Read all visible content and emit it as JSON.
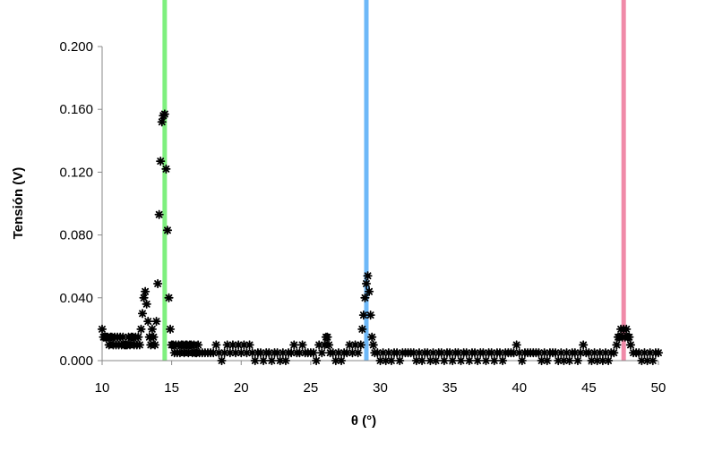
{
  "chart_data": {
    "type": "scatter",
    "title": "",
    "xlabel": "θ (°)",
    "ylabel": "Tensión (V)",
    "xlim": [
      10,
      50
    ],
    "ylim": [
      0,
      0.2
    ],
    "xticks": [
      "10",
      "15",
      "20",
      "25",
      "30",
      "35",
      "40",
      "45",
      "50"
    ],
    "yticks": [
      "0.000",
      "0.040",
      "0.080",
      "0.120",
      "0.160",
      "0.200"
    ],
    "grid": false,
    "legend": "none",
    "marker": "asterisk",
    "marker_color": "#000000",
    "reference_lines": [
      {
        "x": 14.5,
        "color": "#7ff07f"
      },
      {
        "x": 29.0,
        "color": "#6db8f8"
      },
      {
        "x": 47.5,
        "color": "#f08aa8"
      }
    ],
    "series": [
      {
        "points": [
          [
            10.0,
            0.02
          ],
          [
            10.1,
            0.015
          ],
          [
            10.2,
            0.015
          ],
          [
            10.3,
            0.015
          ],
          [
            10.4,
            0.015
          ],
          [
            10.5,
            0.01
          ],
          [
            10.6,
            0.015
          ],
          [
            10.7,
            0.015
          ],
          [
            10.8,
            0.01
          ],
          [
            10.9,
            0.015
          ],
          [
            11.0,
            0.01
          ],
          [
            11.1,
            0.015
          ],
          [
            11.2,
            0.01
          ],
          [
            11.3,
            0.015
          ],
          [
            11.4,
            0.01
          ],
          [
            11.5,
            0.015
          ],
          [
            11.6,
            0.01
          ],
          [
            11.7,
            0.01
          ],
          [
            11.8,
            0.01
          ],
          [
            11.9,
            0.015
          ],
          [
            12.0,
            0.01
          ],
          [
            12.1,
            0.015
          ],
          [
            12.2,
            0.015
          ],
          [
            12.3,
            0.01
          ],
          [
            12.4,
            0.015
          ],
          [
            12.5,
            0.01
          ],
          [
            12.6,
            0.015
          ],
          [
            12.7,
            0.01
          ],
          [
            12.8,
            0.02
          ],
          [
            12.9,
            0.03
          ],
          [
            13.0,
            0.04
          ],
          [
            13.1,
            0.044
          ],
          [
            13.2,
            0.036
          ],
          [
            13.3,
            0.025
          ],
          [
            13.4,
            0.015
          ],
          [
            13.5,
            0.01
          ],
          [
            13.6,
            0.02
          ],
          [
            13.7,
            0.015
          ],
          [
            13.8,
            0.01
          ],
          [
            13.9,
            0.025
          ],
          [
            14.0,
            0.049
          ],
          [
            14.1,
            0.093
          ],
          [
            14.2,
            0.127
          ],
          [
            14.3,
            0.152
          ],
          [
            14.4,
            0.156
          ],
          [
            14.5,
            0.157
          ],
          [
            14.6,
            0.122
          ],
          [
            14.7,
            0.083
          ],
          [
            14.8,
            0.04
          ],
          [
            14.9,
            0.02
          ],
          [
            15.0,
            0.01
          ],
          [
            15.1,
            0.01
          ],
          [
            15.2,
            0.005
          ],
          [
            15.3,
            0.01
          ],
          [
            15.4,
            0.005
          ],
          [
            15.5,
            0.01
          ],
          [
            15.6,
            0.005
          ],
          [
            15.7,
            0.01
          ],
          [
            15.8,
            0.01
          ],
          [
            15.9,
            0.005
          ],
          [
            16.0,
            0.01
          ],
          [
            16.1,
            0.01
          ],
          [
            16.2,
            0.005
          ],
          [
            16.3,
            0.01
          ],
          [
            16.4,
            0.01
          ],
          [
            16.5,
            0.005
          ],
          [
            16.6,
            0.01
          ],
          [
            16.7,
            0.005
          ],
          [
            16.8,
            0.005
          ],
          [
            16.9,
            0.01
          ],
          [
            17.0,
            0.005
          ],
          [
            17.2,
            0.005
          ],
          [
            17.4,
            0.005
          ],
          [
            17.6,
            0.005
          ],
          [
            17.8,
            0.005
          ],
          [
            18.0,
            0.005
          ],
          [
            18.2,
            0.01
          ],
          [
            18.4,
            0.005
          ],
          [
            18.6,
            0.0
          ],
          [
            18.8,
            0.005
          ],
          [
            19.0,
            0.01
          ],
          [
            19.2,
            0.005
          ],
          [
            19.4,
            0.01
          ],
          [
            19.6,
            0.005
          ],
          [
            19.8,
            0.01
          ],
          [
            20.0,
            0.005
          ],
          [
            20.2,
            0.01
          ],
          [
            20.4,
            0.005
          ],
          [
            20.6,
            0.01
          ],
          [
            20.8,
            0.005
          ],
          [
            21.0,
            0.0
          ],
          [
            21.2,
            0.005
          ],
          [
            21.4,
            0.005
          ],
          [
            21.6,
            0.0
          ],
          [
            21.8,
            0.005
          ],
          [
            22.0,
            0.005
          ],
          [
            22.2,
            0.0
          ],
          [
            22.4,
            0.005
          ],
          [
            22.6,
            0.005
          ],
          [
            22.8,
            0.0
          ],
          [
            23.0,
            0.005
          ],
          [
            23.2,
            0.0
          ],
          [
            23.4,
            0.005
          ],
          [
            23.6,
            0.005
          ],
          [
            23.8,
            0.01
          ],
          [
            24.0,
            0.005
          ],
          [
            24.2,
            0.005
          ],
          [
            24.4,
            0.01
          ],
          [
            24.6,
            0.005
          ],
          [
            24.8,
            0.005
          ],
          [
            25.0,
            0.005
          ],
          [
            25.2,
            0.005
          ],
          [
            25.4,
            0.0
          ],
          [
            25.6,
            0.01
          ],
          [
            25.8,
            0.005
          ],
          [
            26.0,
            0.01
          ],
          [
            26.1,
            0.015
          ],
          [
            26.2,
            0.015
          ],
          [
            26.3,
            0.01
          ],
          [
            26.4,
            0.005
          ],
          [
            26.6,
            0.005
          ],
          [
            26.8,
            0.0
          ],
          [
            27.0,
            0.005
          ],
          [
            27.2,
            0.0
          ],
          [
            27.4,
            0.005
          ],
          [
            27.6,
            0.005
          ],
          [
            27.8,
            0.01
          ],
          [
            28.0,
            0.005
          ],
          [
            28.2,
            0.01
          ],
          [
            28.4,
            0.005
          ],
          [
            28.6,
            0.01
          ],
          [
            28.7,
            0.02
          ],
          [
            28.8,
            0.029
          ],
          [
            28.9,
            0.04
          ],
          [
            29.0,
            0.049
          ],
          [
            29.1,
            0.054
          ],
          [
            29.2,
            0.044
          ],
          [
            29.3,
            0.029
          ],
          [
            29.4,
            0.015
          ],
          [
            29.5,
            0.01
          ],
          [
            29.6,
            0.005
          ],
          [
            29.8,
            0.005
          ],
          [
            30.0,
            0.0
          ],
          [
            30.2,
            0.005
          ],
          [
            30.4,
            0.0
          ],
          [
            30.6,
            0.005
          ],
          [
            30.8,
            0.0
          ],
          [
            31.0,
            0.005
          ],
          [
            31.2,
            0.005
          ],
          [
            31.4,
            0.0
          ],
          [
            31.6,
            0.005
          ],
          [
            31.8,
            0.005
          ],
          [
            32.0,
            0.005
          ],
          [
            32.2,
            0.005
          ],
          [
            32.4,
            0.005
          ],
          [
            32.6,
            0.0
          ],
          [
            32.8,
            0.005
          ],
          [
            33.0,
            0.0
          ],
          [
            33.2,
            0.005
          ],
          [
            33.4,
            0.005
          ],
          [
            33.6,
            0.0
          ],
          [
            33.8,
            0.005
          ],
          [
            34.0,
            0.0
          ],
          [
            34.2,
            0.005
          ],
          [
            34.4,
            0.005
          ],
          [
            34.6,
            0.0
          ],
          [
            34.8,
            0.005
          ],
          [
            35.0,
            0.005
          ],
          [
            35.2,
            0.0
          ],
          [
            35.4,
            0.005
          ],
          [
            35.6,
            0.005
          ],
          [
            35.8,
            0.0
          ],
          [
            36.0,
            0.005
          ],
          [
            36.2,
            0.005
          ],
          [
            36.4,
            0.0
          ],
          [
            36.6,
            0.005
          ],
          [
            36.8,
            0.005
          ],
          [
            37.0,
            0.0
          ],
          [
            37.2,
            0.005
          ],
          [
            37.4,
            0.005
          ],
          [
            37.6,
            0.0
          ],
          [
            37.8,
            0.005
          ],
          [
            38.0,
            0.005
          ],
          [
            38.2,
            0.0
          ],
          [
            38.4,
            0.005
          ],
          [
            38.6,
            0.005
          ],
          [
            38.8,
            0.0
          ],
          [
            39.0,
            0.005
          ],
          [
            39.2,
            0.005
          ],
          [
            39.4,
            0.005
          ],
          [
            39.6,
            0.005
          ],
          [
            39.8,
            0.01
          ],
          [
            40.0,
            0.005
          ],
          [
            40.2,
            0.0
          ],
          [
            40.4,
            0.005
          ],
          [
            40.6,
            0.005
          ],
          [
            40.8,
            0.005
          ],
          [
            41.0,
            0.005
          ],
          [
            41.2,
            0.005
          ],
          [
            41.4,
            0.005
          ],
          [
            41.6,
            0.0
          ],
          [
            41.8,
            0.005
          ],
          [
            42.0,
            0.0
          ],
          [
            42.2,
            0.005
          ],
          [
            42.4,
            0.005
          ],
          [
            42.6,
            0.005
          ],
          [
            42.8,
            0.0
          ],
          [
            43.0,
            0.005
          ],
          [
            43.2,
            0.0
          ],
          [
            43.4,
            0.005
          ],
          [
            43.6,
            0.0
          ],
          [
            43.8,
            0.005
          ],
          [
            44.0,
            0.005
          ],
          [
            44.2,
            0.0
          ],
          [
            44.4,
            0.005
          ],
          [
            44.6,
            0.01
          ],
          [
            44.8,
            0.005
          ],
          [
            45.0,
            0.005
          ],
          [
            45.2,
            0.0
          ],
          [
            45.4,
            0.005
          ],
          [
            45.6,
            0.0
          ],
          [
            45.8,
            0.005
          ],
          [
            46.0,
            0.0
          ],
          [
            46.2,
            0.005
          ],
          [
            46.4,
            0.0
          ],
          [
            46.6,
            0.005
          ],
          [
            46.8,
            0.005
          ],
          [
            47.0,
            0.01
          ],
          [
            47.1,
            0.015
          ],
          [
            47.2,
            0.015
          ],
          [
            47.3,
            0.02
          ],
          [
            47.4,
            0.015
          ],
          [
            47.5,
            0.02
          ],
          [
            47.6,
            0.015
          ],
          [
            47.7,
            0.02
          ],
          [
            47.8,
            0.015
          ],
          [
            47.9,
            0.015
          ],
          [
            48.0,
            0.01
          ],
          [
            48.2,
            0.005
          ],
          [
            48.4,
            0.005
          ],
          [
            48.6,
            0.005
          ],
          [
            48.8,
            0.0
          ],
          [
            49.0,
            0.005
          ],
          [
            49.2,
            0.0
          ],
          [
            49.4,
            0.005
          ],
          [
            49.6,
            0.0
          ],
          [
            49.8,
            0.005
          ],
          [
            50.0,
            0.005
          ]
        ]
      }
    ]
  }
}
